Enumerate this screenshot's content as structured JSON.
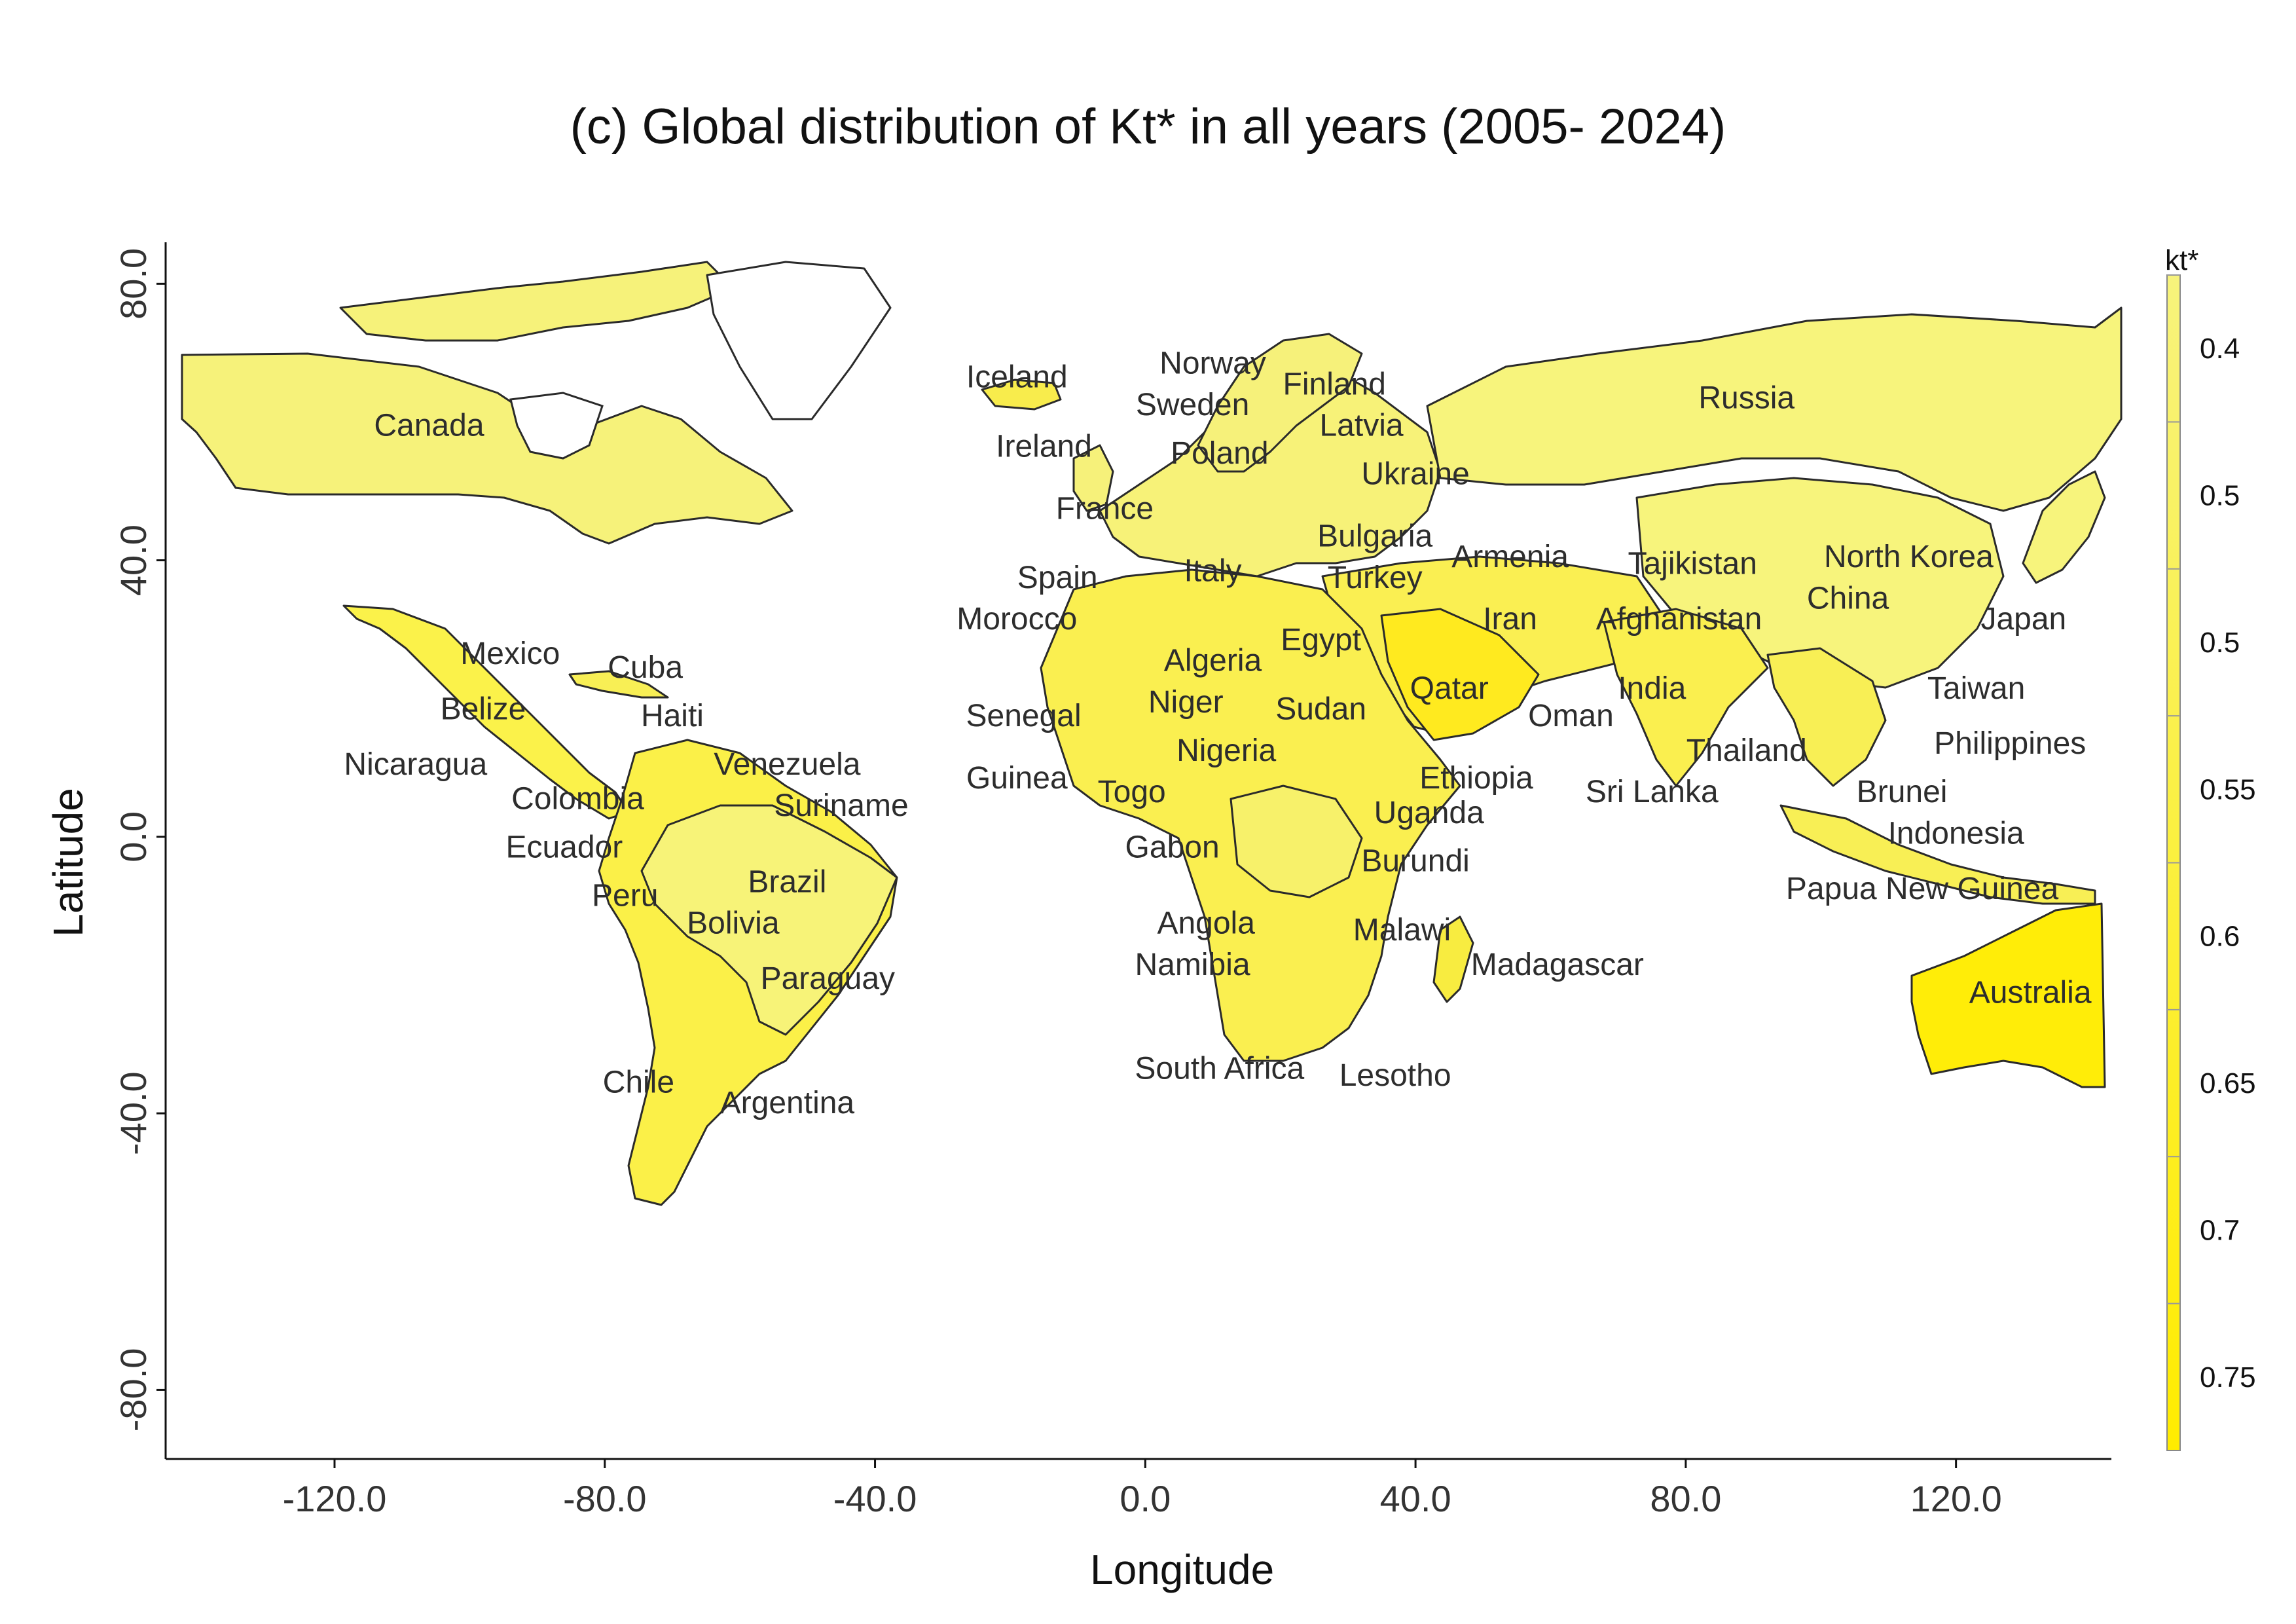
{
  "title": "(c) Global distribution of Kt* in all years (2005- 2024)",
  "x_axis": {
    "label": "Longitude",
    "ticks": [
      "-120.0",
      "-80.0",
      "-40.0",
      "0.0",
      "40.0",
      "80.0",
      "120.0"
    ],
    "tick_values": [
      -120,
      -80,
      -40,
      0,
      40,
      80,
      120
    ]
  },
  "y_axis": {
    "label": "Latitude",
    "ticks": [
      "80.0",
      "40.0",
      "0.0",
      "-40.0",
      "-80.0"
    ],
    "tick_values": [
      80,
      40,
      0,
      -40,
      -80
    ]
  },
  "colorbar": {
    "title": "kt*",
    "ticks": [
      "0.4",
      "0.5",
      "0.5",
      "0.55",
      "0.6",
      "0.65",
      "0.7",
      "0.75"
    ],
    "color_low": "#f7f37c",
    "color_high": "#ffec00"
  },
  "chart_data": {
    "type": "map",
    "title": "(c) Global distribution of Kt* in all years (2005- 2024)",
    "xlabel": "Longitude",
    "ylabel": "Latitude",
    "xlim": [
      -145,
      143
    ],
    "ylim": [
      -90,
      86
    ],
    "legend": "right",
    "grid": false
  },
  "countries": [
    {
      "name": "Canada",
      "lon": -106,
      "lat": 58
    },
    {
      "name": "Iceland",
      "lon": -19,
      "lat": 65
    },
    {
      "name": "Norway",
      "lon": 10,
      "lat": 67
    },
    {
      "name": "Finland",
      "lon": 28,
      "lat": 64
    },
    {
      "name": "Sweden",
      "lon": 7,
      "lat": 61
    },
    {
      "name": "Latvia",
      "lon": 32,
      "lat": 58
    },
    {
      "name": "Russia",
      "lon": 89,
      "lat": 62
    },
    {
      "name": "Ireland",
      "lon": -15,
      "lat": 55
    },
    {
      "name": "Poland",
      "lon": 11,
      "lat": 54
    },
    {
      "name": "Ukraine",
      "lon": 40,
      "lat": 51
    },
    {
      "name": "France",
      "lon": -6,
      "lat": 46
    },
    {
      "name": "Bulgaria",
      "lon": 34,
      "lat": 42
    },
    {
      "name": "Armenia",
      "lon": 54,
      "lat": 39
    },
    {
      "name": "Tajikistan",
      "lon": 81,
      "lat": 38
    },
    {
      "name": "North Korea",
      "lon": 113,
      "lat": 39
    },
    {
      "name": "Spain",
      "lon": -13,
      "lat": 36
    },
    {
      "name": "Italy",
      "lon": 10,
      "lat": 37
    },
    {
      "name": "Turkey",
      "lon": 34,
      "lat": 36
    },
    {
      "name": "China",
      "lon": 104,
      "lat": 33
    },
    {
      "name": "Morocco",
      "lon": -19,
      "lat": 30
    },
    {
      "name": "Iran",
      "lon": 54,
      "lat": 30
    },
    {
      "name": "Afghanistan",
      "lon": 79,
      "lat": 30
    },
    {
      "name": "Japan",
      "lon": 130,
      "lat": 30
    },
    {
      "name": "Mexico",
      "lon": -94,
      "lat": 25
    },
    {
      "name": "Cuba",
      "lon": -74,
      "lat": 23
    },
    {
      "name": "Egypt",
      "lon": 26,
      "lat": 27
    },
    {
      "name": "Algeria",
      "lon": 10,
      "lat": 24
    },
    {
      "name": "Qatar",
      "lon": 45,
      "lat": 20
    },
    {
      "name": "India",
      "lon": 75,
      "lat": 20
    },
    {
      "name": "Taiwan",
      "lon": 123,
      "lat": 20
    },
    {
      "name": "Belize",
      "lon": -98,
      "lat": 17
    },
    {
      "name": "Haiti",
      "lon": -70,
      "lat": 16
    },
    {
      "name": "Niger",
      "lon": 6,
      "lat": 18
    },
    {
      "name": "Sudan",
      "lon": 26,
      "lat": 17
    },
    {
      "name": "Oman",
      "lon": 63,
      "lat": 16
    },
    {
      "name": "Senegal",
      "lon": -18,
      "lat": 16
    },
    {
      "name": "Nicaragua",
      "lon": -108,
      "lat": 9
    },
    {
      "name": "Venezuela",
      "lon": -53,
      "lat": 9
    },
    {
      "name": "Nigeria",
      "lon": 12,
      "lat": 11
    },
    {
      "name": "Thailand",
      "lon": 89,
      "lat": 11
    },
    {
      "name": "Philippines",
      "lon": 128,
      "lat": 12
    },
    {
      "name": "Guinea",
      "lon": -19,
      "lat": 7
    },
    {
      "name": "Ethiopia",
      "lon": 49,
      "lat": 7
    },
    {
      "name": "Sri Lanka",
      "lon": 75,
      "lat": 5
    },
    {
      "name": "Brunei",
      "lon": 112,
      "lat": 5
    },
    {
      "name": "Colombia",
      "lon": -84,
      "lat": 4
    },
    {
      "name": "Suriname",
      "lon": -45,
      "lat": 3
    },
    {
      "name": "Togo",
      "lon": -2,
      "lat": 5
    },
    {
      "name": "Uganda",
      "lon": 42,
      "lat": 2
    },
    {
      "name": "Indonesia",
      "lon": 120,
      "lat": -1
    },
    {
      "name": "Gabon",
      "lon": 4,
      "lat": -3
    },
    {
      "name": "Ecuador",
      "lon": -86,
      "lat": -3
    },
    {
      "name": "Burundi",
      "lon": 40,
      "lat": -5
    },
    {
      "name": "Brazil",
      "lon": -53,
      "lat": -8
    },
    {
      "name": "Papua New Guinea",
      "lon": 115,
      "lat": -9
    },
    {
      "name": "Peru",
      "lon": -77,
      "lat": -10
    },
    {
      "name": "Bolivia",
      "lon": -61,
      "lat": -14
    },
    {
      "name": "Angola",
      "lon": 9,
      "lat": -14
    },
    {
      "name": "Malawi",
      "lon": 38,
      "lat": -15
    },
    {
      "name": "Namibia",
      "lon": 7,
      "lat": -20
    },
    {
      "name": "Madagascar",
      "lon": 61,
      "lat": -20
    },
    {
      "name": "Paraguay",
      "lon": -47,
      "lat": -22
    },
    {
      "name": "Australia",
      "lon": 131,
      "lat": -24
    },
    {
      "name": "South Africa",
      "lon": 11,
      "lat": -35
    },
    {
      "name": "Lesotho",
      "lon": 37,
      "lat": -36
    },
    {
      "name": "Chile",
      "lon": -75,
      "lat": -37
    },
    {
      "name": "Argentina",
      "lon": -53,
      "lat": -40
    }
  ]
}
